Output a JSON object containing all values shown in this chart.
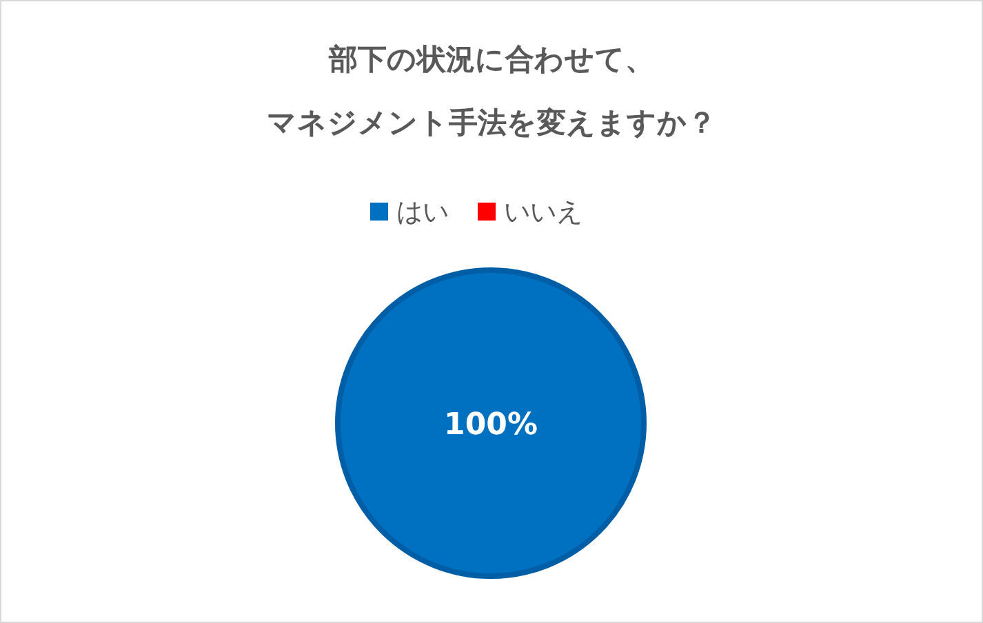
{
  "chart_data": {
    "type": "pie",
    "title": "部下の状況に合わせて、",
    "subtitle": "マネジメント手法を変えますか？",
    "categories": [
      "はい",
      "いいえ"
    ],
    "values": [
      100,
      0
    ],
    "colors": [
      "#0070c0",
      "#ff0000"
    ],
    "value_labels": [
      "100%",
      null
    ],
    "legend": "top"
  }
}
